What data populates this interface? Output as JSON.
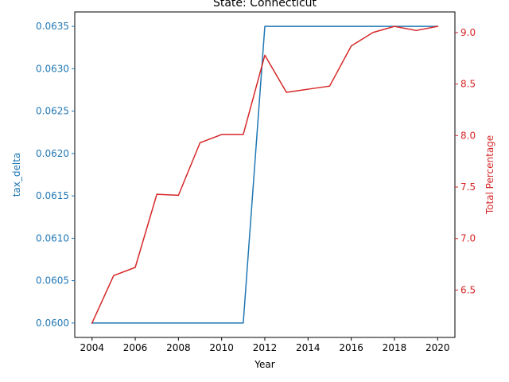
{
  "chart_data": {
    "type": "line",
    "title": "State: Connecticut",
    "xlabel": "Year",
    "ylabel_left": "tax_delta",
    "ylabel_right": "Total Percentage",
    "x": [
      2004,
      2005,
      2006,
      2007,
      2008,
      2009,
      2010,
      2011,
      2012,
      2013,
      2014,
      2015,
      2016,
      2017,
      2018,
      2019,
      2020
    ],
    "xlim": [
      2003.2,
      2020.8
    ],
    "x_ticks": [
      2004,
      2006,
      2008,
      2010,
      2012,
      2014,
      2016,
      2018,
      2020
    ],
    "series": [
      {
        "axis": "left",
        "color": "#1f77b4",
        "values": [
          0.06,
          0.06,
          0.06,
          0.06,
          0.06,
          0.06,
          0.06,
          0.06,
          0.0635,
          0.0635,
          0.0635,
          0.0635,
          0.0635,
          0.0635,
          0.0635,
          0.0635,
          0.0635
        ]
      },
      {
        "axis": "right",
        "color": "#d62728",
        "values": [
          6.18,
          6.64,
          6.72,
          7.43,
          7.42,
          7.93,
          8.01,
          8.01,
          8.78,
          8.42,
          8.45,
          8.48,
          8.87,
          9.0,
          9.06,
          9.02,
          9.06
        ]
      }
    ],
    "ylim_left": [
      0.05983,
      0.06367
    ],
    "ylim_right": [
      6.04,
      9.2
    ],
    "y_ticks_left": [
      "0.0600",
      "0.0605",
      "0.0610",
      "0.0615",
      "0.0620",
      "0.0625",
      "0.0630",
      "0.0635"
    ],
    "y_ticks_right": [
      "6.5",
      "7.0",
      "7.5",
      "8.0",
      "8.5",
      "9.0"
    ],
    "grid": false,
    "legend": "none"
  }
}
